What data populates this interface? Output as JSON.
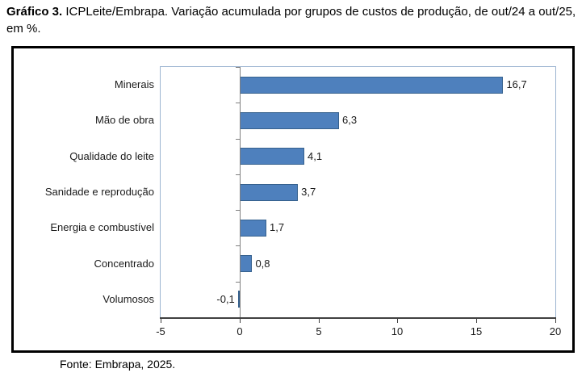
{
  "title": {
    "prefix": "Gráfico 3.",
    "text": " ICPLeite/Embrapa. Variação acumulada por grupos de custos de produção, de out/24 a out/25, em %."
  },
  "footer": "Fonte: Embrapa, 2025.",
  "chart_data": {
    "type": "bar",
    "orientation": "horizontal",
    "title": "ICPLeite/Embrapa. Variação acumulada por grupos de custos de produção, de out/24 a out/25, em %",
    "categories": [
      "Minerais",
      "Mão de obra",
      "Qualidade do leite",
      "Sanidade e reprodução",
      "Energia e combustível",
      "Concentrado",
      "Volumosos"
    ],
    "values": [
      16.7,
      6.3,
      4.1,
      3.7,
      1.7,
      0.8,
      -0.1
    ],
    "value_labels": [
      "16,7",
      "6,3",
      "4,1",
      "3,7",
      "1,7",
      "0,8",
      "-0,1"
    ],
    "x_ticks": [
      -5,
      0,
      5,
      10,
      15,
      20
    ],
    "x_tick_labels": [
      "-5",
      "0",
      "5",
      "10",
      "15",
      "20"
    ],
    "xlim": [
      -5,
      20
    ],
    "xlabel": "",
    "ylabel": "",
    "grid": false,
    "legend": "none",
    "colors": {
      "bar_fill": "#4e80bd",
      "bar_border": "#36618e",
      "plot_border": "#9db5d1",
      "value_axis": "#404040",
      "category_axis": "#7f7f7f"
    }
  }
}
